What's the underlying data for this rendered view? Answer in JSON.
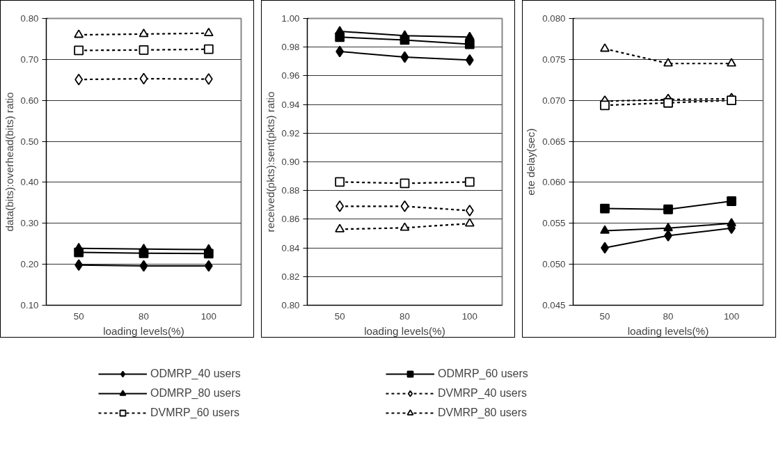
{
  "chart_data": [
    {
      "type": "line",
      "categories": [
        "50",
        "80",
        "100"
      ],
      "xlabel": "loading levels(%)",
      "ylabel": "data(bits):overhead(bits) ratio",
      "ylim": [
        0.1,
        0.8
      ],
      "yticks": [
        {
          "value": 0.1,
          "label": "0.10"
        },
        {
          "value": 0.2,
          "label": "0.20"
        },
        {
          "value": 0.3,
          "label": "0.30"
        },
        {
          "value": 0.4,
          "label": "0.40"
        },
        {
          "value": 0.5,
          "label": "0.50"
        },
        {
          "value": 0.6,
          "label": "0.60"
        },
        {
          "value": 0.7,
          "label": "0.70"
        },
        {
          "value": 0.8,
          "label": "0.80"
        }
      ],
      "grid": "y",
      "legend": "bottom",
      "series": [
        {
          "name": "ODMRP_40 users",
          "color": "#000000",
          "marker": "diamond",
          "line_style": "solid",
          "values": [
            0.198,
            0.196,
            0.196
          ]
        },
        {
          "name": "ODMRP_60 users",
          "color": "#000000",
          "marker": "square",
          "line_style": "solid",
          "values": [
            0.229,
            0.227,
            0.226
          ]
        },
        {
          "name": "ODMRP_80 users",
          "color": "#000000",
          "marker": "triangle",
          "line_style": "solid",
          "values": [
            0.239,
            0.237,
            0.236
          ]
        },
        {
          "name": "DVMRP_40 users",
          "color": "#000000",
          "marker": "diamond",
          "line_style": "dashed",
          "values": [
            0.651,
            0.653,
            0.652
          ]
        },
        {
          "name": "DVMRP_60 users",
          "color": "#000000",
          "marker": "square",
          "line_style": "dashed",
          "values": [
            0.722,
            0.723,
            0.725
          ]
        },
        {
          "name": "DVMRP_80 users",
          "color": "#000000",
          "marker": "triangle",
          "line_style": "dashed",
          "values": [
            0.76,
            0.762,
            0.764
          ]
        }
      ]
    },
    {
      "type": "line",
      "categories": [
        "50",
        "80",
        "100"
      ],
      "xlabel": "loading levels(%)",
      "ylabel": "received(pkts):sent(pkts) ratio",
      "ylim": [
        0.8,
        1.0
      ],
      "yticks": [
        {
          "value": 0.8,
          "label": "0.80"
        },
        {
          "value": 0.82,
          "label": "0.82"
        },
        {
          "value": 0.84,
          "label": "0.84"
        },
        {
          "value": 0.86,
          "label": "0.86"
        },
        {
          "value": 0.88,
          "label": "0.88"
        },
        {
          "value": 0.9,
          "label": "0.90"
        },
        {
          "value": 0.92,
          "label": "0.92"
        },
        {
          "value": 0.94,
          "label": "0.94"
        },
        {
          "value": 0.96,
          "label": "0.96"
        },
        {
          "value": 0.98,
          "label": "0.98"
        },
        {
          "value": 1.0,
          "label": "1.00"
        }
      ],
      "grid": "y",
      "series": [
        {
          "color": "#000000",
          "marker": "diamond",
          "line_style": "solid",
          "values": [
            0.977,
            0.973,
            0.971
          ]
        },
        {
          "color": "#000000",
          "marker": "square",
          "line_style": "solid",
          "values": [
            0.987,
            0.985,
            0.982
          ]
        },
        {
          "color": "#000000",
          "marker": "triangle",
          "line_style": "solid",
          "values": [
            0.991,
            0.988,
            0.987
          ]
        },
        {
          "color": "#000000",
          "marker": "diamond",
          "line_style": "dashed",
          "values": [
            0.869,
            0.869,
            0.866
          ]
        },
        {
          "color": "#000000",
          "marker": "square",
          "line_style": "dashed",
          "values": [
            0.886,
            0.885,
            0.886
          ]
        },
        {
          "color": "#000000",
          "marker": "triangle",
          "line_style": "dashed",
          "values": [
            0.853,
            0.854,
            0.857
          ]
        }
      ]
    },
    {
      "type": "line",
      "categories": [
        "50",
        "80",
        "100"
      ],
      "xlabel": "loading levels(%)",
      "ylabel": "ete delay(sec)",
      "ylim": [
        0.045,
        0.08
      ],
      "yticks": [
        {
          "value": 0.045,
          "label": "0.045"
        },
        {
          "value": 0.05,
          "label": "0.050"
        },
        {
          "value": 0.055,
          "label": "0.055"
        },
        {
          "value": 0.06,
          "label": "0.060"
        },
        {
          "value": 0.065,
          "label": "0.065"
        },
        {
          "value": 0.07,
          "label": "0.070"
        },
        {
          "value": 0.075,
          "label": "0.075"
        },
        {
          "value": 0.08,
          "label": "0.080"
        }
      ],
      "grid": "y",
      "series": [
        {
          "color": "#000000",
          "marker": "diamond",
          "line_style": "solid",
          "values": [
            0.052,
            0.0535,
            0.0544
          ]
        },
        {
          "color": "#000000",
          "marker": "square",
          "line_style": "solid",
          "values": [
            0.0568,
            0.0567,
            0.0577
          ]
        },
        {
          "color": "#000000",
          "marker": "triangle",
          "line_style": "solid",
          "values": [
            0.0541,
            0.0544,
            0.055
          ]
        },
        {
          "color": "#000000",
          "marker": "diamond",
          "line_style": "dashed",
          "values": [
            0.0699,
            0.0701,
            0.0702
          ]
        },
        {
          "color": "#000000",
          "marker": "square",
          "line_style": "dashed",
          "values": [
            0.0694,
            0.0697,
            0.07
          ]
        },
        {
          "color": "#000000",
          "marker": "triangle",
          "line_style": "dashed",
          "values": [
            0.0763,
            0.0745,
            0.0745
          ]
        }
      ]
    }
  ]
}
